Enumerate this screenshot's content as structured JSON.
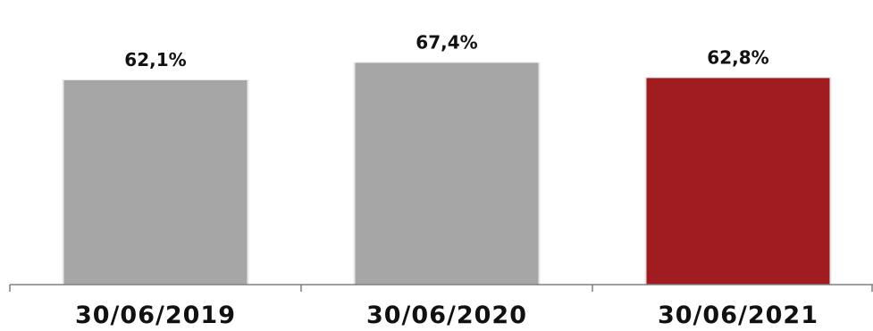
{
  "chart_data": {
    "type": "bar",
    "categories": [
      "30/06/2019",
      "30/06/2020",
      "30/06/2021"
    ],
    "values": [
      62.1,
      67.4,
      62.8
    ],
    "value_labels": [
      "62,1%",
      "67,4%",
      "62,8%"
    ],
    "unit": "%",
    "title": "",
    "xlabel": "",
    "ylabel": "",
    "grid": false,
    "legend": "none",
    "colors": {
      "default_bar": "#a6a6a6",
      "highlight_bar": "#a11c21",
      "axis": "#7f7f7f",
      "text": "#111111"
    },
    "highlight_index": 2
  }
}
